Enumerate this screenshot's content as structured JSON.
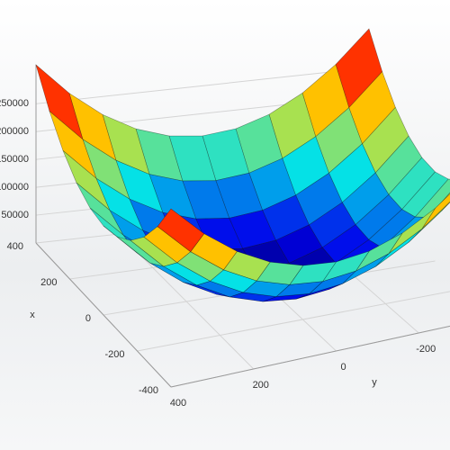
{
  "chart_data": {
    "type": "surface",
    "colormap": "jet",
    "xlabel": "x",
    "ylabel": "y",
    "x": [
      -400,
      -320,
      -240,
      -160,
      -80,
      0,
      80,
      160,
      240,
      320,
      400
    ],
    "y": [
      -400,
      -320,
      -240,
      -160,
      -80,
      0,
      80,
      160,
      240,
      320,
      400
    ],
    "z": [
      [
        320000,
        262400,
        217600,
        185600,
        166400,
        160000,
        166400,
        185600,
        217600,
        262400,
        320000
      ],
      [
        262400,
        204800,
        160000,
        128000,
        108800,
        102400,
        108800,
        128000,
        160000,
        204800,
        262400
      ],
      [
        217600,
        160000,
        115200,
        83200,
        64000,
        57600,
        64000,
        83200,
        115200,
        160000,
        217600
      ],
      [
        185600,
        128000,
        83200,
        51200,
        32000,
        25600,
        32000,
        51200,
        83200,
        128000,
        185600
      ],
      [
        166400,
        108800,
        64000,
        32000,
        12800,
        6400,
        12800,
        32000,
        64000,
        108800,
        166400
      ],
      [
        160000,
        102400,
        57600,
        25600,
        6400,
        0,
        6400,
        25600,
        57600,
        102400,
        160000
      ],
      [
        166400,
        108800,
        64000,
        32000,
        12800,
        6400,
        12800,
        32000,
        64000,
        108800,
        166400
      ],
      [
        185600,
        128000,
        83200,
        51200,
        32000,
        25600,
        32000,
        51200,
        83200,
        128000,
        185600
      ],
      [
        217600,
        160000,
        115200,
        83200,
        64000,
        57600,
        64000,
        83200,
        115200,
        160000,
        217600
      ],
      [
        262400,
        204800,
        160000,
        128000,
        108800,
        102400,
        108800,
        128000,
        160000,
        204800,
        262400
      ],
      [
        320000,
        262400,
        217600,
        185600,
        166400,
        160000,
        166400,
        185600,
        217600,
        262400,
        320000
      ]
    ],
    "xlim": [
      -400,
      400
    ],
    "ylim": [
      -400,
      400
    ],
    "zlim": [
      0,
      320000
    ],
    "xticks": [
      -400,
      -200,
      0,
      200,
      400
    ],
    "yticks": [
      -200,
      0,
      200,
      400
    ],
    "zticks": [
      50000,
      100000,
      150000,
      200000,
      250000
    ],
    "grid": true
  }
}
